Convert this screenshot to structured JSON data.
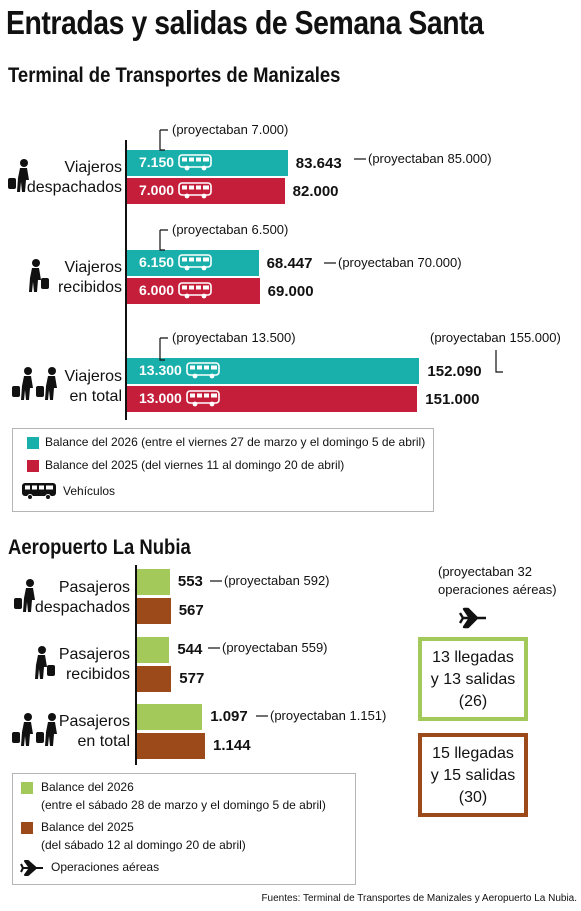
{
  "title": "Entradas y salidas de Semana Santa",
  "colors": {
    "teal": "#19b0ac",
    "red": "#c41e3a",
    "green": "#a3c95a",
    "brown": "#9c4a1a"
  },
  "terminal": {
    "title": "Terminal de Transportes de Manizales",
    "rows": [
      {
        "label_l1": "Viajeros",
        "label_l2": "despachados",
        "veh_2026": "7.150",
        "veh_2025": "7.000",
        "val_2026": "83.643",
        "val_2025": "82.000",
        "proj_veh": "(proyectaban 7.000)",
        "proj_val": "(proyectaban 85.000)"
      },
      {
        "label_l1": "Viajeros",
        "label_l2": "recibidos",
        "veh_2026": "6.150",
        "veh_2025": "6.000",
        "val_2026": "68.447",
        "val_2025": "69.000",
        "proj_veh": "(proyectaban 6.500)",
        "proj_val": "(proyectaban 70.000)"
      },
      {
        "label_l1": "Viajeros",
        "label_l2": "en total",
        "veh_2026": "13.300",
        "veh_2025": "13.000",
        "val_2026": "152.090",
        "val_2025": "151.000",
        "proj_veh": "(proyectaban 13.500)",
        "proj_val": "(proyectaban 155.000)"
      }
    ],
    "legend": {
      "item_2026": "Balance del 2026 (entre el viernes 27 de marzo y el domingo 5 de abril)",
      "item_2025": "Balance del 2025 (del viernes 11 al domingo 20 de abril)",
      "vehicles": "Vehículos"
    }
  },
  "airport": {
    "title": "Aeropuerto La Nubia",
    "rows": [
      {
        "label_l1": "Pasajeros",
        "label_l2": "despachados",
        "val_2026": "553",
        "val_2025": "567",
        "proj": "(proyectaban 592)"
      },
      {
        "label_l1": "Pasajeros",
        "label_l2": "recibidos",
        "val_2026": "544",
        "val_2025": "577",
        "proj": "(proyectaban 559)"
      },
      {
        "label_l1": "Pasajeros",
        "label_l2": "en total",
        "val_2026": "1.097",
        "val_2025": "1.144",
        "proj": "(proyectaban 1.151)"
      }
    ],
    "ops_proj_l1": "(proyectaban 32",
    "ops_proj_l2": "operaciones aéreas)",
    "ops_2026": {
      "l1": "13 llegadas",
      "l2": "y 13 salidas",
      "l3": "(26)"
    },
    "ops_2025": {
      "l1": "15 llegadas",
      "l2": "y 15 salidas",
      "l3": "(30)"
    },
    "legend": {
      "item_2026_l1": "Balance del 2026",
      "item_2026_l2": "(entre el sábado 28 de marzo y el domingo 5 de abril)",
      "item_2025_l1": "Balance del 2025",
      "item_2025_l2": "(del sábado 12 al domingo 20 de abril)",
      "ops": "Operaciones aéreas"
    }
  },
  "source": "Fuentes: Terminal de Transportes de Manizales y Aeropuerto La Nubia.",
  "chart_data": [
    {
      "type": "bar",
      "title": "Terminal de Transportes de Manizales",
      "categories": [
        "Viajeros despachados",
        "Viajeros recibidos",
        "Viajeros en total"
      ],
      "series": [
        {
          "name": "Balance del 2026",
          "values": [
            83643,
            68447,
            152090
          ],
          "vehicles": [
            7150,
            6150,
            13300
          ],
          "projected": [
            85000,
            70000,
            155000
          ],
          "projected_vehicles": [
            7000,
            6500,
            13500
          ]
        },
        {
          "name": "Balance del 2025",
          "values": [
            82000,
            69000,
            151000
          ],
          "vehicles": [
            7000,
            6000,
            13000
          ]
        }
      ],
      "orientation": "horizontal"
    },
    {
      "type": "bar",
      "title": "Aeropuerto La Nubia",
      "categories": [
        "Pasajeros despachados",
        "Pasajeros recibidos",
        "Pasajeros en total"
      ],
      "series": [
        {
          "name": "Balance del 2026",
          "values": [
            553,
            544,
            1097
          ],
          "projected": [
            592,
            559,
            1151
          ]
        },
        {
          "name": "Balance del 2025",
          "values": [
            567,
            577,
            1144
          ]
        }
      ],
      "orientation": "horizontal",
      "air_operations": {
        "2026": 26,
        "2025": 30,
        "projected_2026": 32
      }
    }
  ]
}
